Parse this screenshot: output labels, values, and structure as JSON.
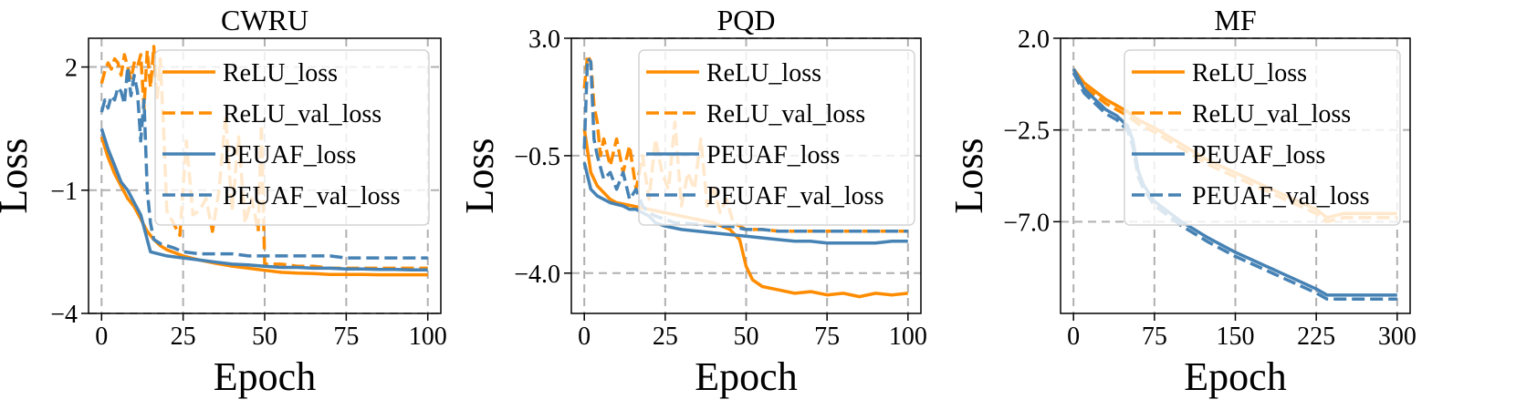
{
  "colors": {
    "relu": "#ff8c00",
    "peuaf": "#4682b4",
    "grid": "#b0b0b0"
  },
  "legend_labels": [
    "ReLU_loss",
    "ReLU_val_loss",
    "PEUAF_loss",
    "PEUAF_val_loss"
  ],
  "chart_data": [
    {
      "type": "line",
      "title": "CWRU",
      "xlabel": "Epoch",
      "ylabel": "Loss",
      "xlim": [
        -4,
        104
      ],
      "ylim": [
        -4,
        2.7
      ],
      "xticks": [
        0,
        25,
        50,
        75,
        100
      ],
      "xtick_labels": [
        "0",
        "25",
        "50",
        "75",
        "100"
      ],
      "yticks": [
        2,
        -1,
        -4
      ],
      "ytick_labels": [
        "2",
        "−1",
        "−4"
      ],
      "grid": true,
      "legend": "upper right",
      "series": [
        {
          "name": "ReLU_loss",
          "color": "#ff8c00",
          "dash": false,
          "x": [
            0,
            2,
            4,
            6,
            8,
            10,
            12,
            14,
            16,
            18,
            20,
            25,
            30,
            35,
            40,
            45,
            50,
            55,
            60,
            65,
            70,
            75,
            80,
            85,
            90,
            95,
            100
          ],
          "y": [
            0.3,
            -0.2,
            -0.6,
            -0.9,
            -1.2,
            -1.4,
            -1.7,
            -2.0,
            -2.2,
            -2.35,
            -2.45,
            -2.6,
            -2.7,
            -2.78,
            -2.85,
            -2.9,
            -2.95,
            -3.0,
            -3.02,
            -3.03,
            -3.05,
            -3.05,
            -3.05,
            -3.06,
            -3.06,
            -3.06,
            -3.06
          ]
        },
        {
          "name": "ReLU_val_loss",
          "color": "#ff8c00",
          "dash": true,
          "x": [
            0,
            1,
            2,
            3,
            4,
            5,
            6,
            7,
            8,
            9,
            10,
            11,
            12,
            13,
            14,
            15,
            16,
            17,
            18,
            19,
            20,
            22,
            24,
            26,
            28,
            30,
            32,
            34,
            36,
            38,
            40,
            42,
            44,
            46,
            48,
            49,
            50,
            55,
            60,
            65,
            70,
            75,
            80,
            85,
            90,
            95,
            100
          ],
          "y": [
            1.6,
            1.9,
            2.1,
            1.95,
            2.2,
            2.1,
            1.8,
            2.3,
            2.0,
            1.7,
            2.1,
            2.0,
            2.3,
            1.0,
            2.4,
            1.5,
            2.5,
            1.2,
            2.2,
            0.5,
            -1.5,
            -1.8,
            -2.1,
            0.2,
            -1.6,
            -1.5,
            -1.2,
            -2.0,
            -1.0,
            0.8,
            -1.5,
            0.3,
            -1.8,
            -1.2,
            -2.0,
            0.6,
            -2.8,
            -2.8,
            -2.85,
            -2.85,
            -2.9,
            -2.9,
            -2.9,
            -2.9,
            -2.9,
            -2.9,
            -2.9
          ]
        },
        {
          "name": "PEUAF_loss",
          "color": "#4682b4",
          "dash": false,
          "x": [
            0,
            2,
            4,
            6,
            8,
            10,
            12,
            14,
            15,
            20,
            25,
            30,
            35,
            40,
            45,
            50,
            55,
            60,
            65,
            70,
            75,
            80,
            85,
            90,
            95,
            100
          ],
          "y": [
            0.5,
            0.0,
            -0.4,
            -0.8,
            -1.0,
            -1.3,
            -1.6,
            -2.2,
            -2.5,
            -2.6,
            -2.65,
            -2.7,
            -2.75,
            -2.8,
            -2.82,
            -2.85,
            -2.88,
            -2.88,
            -2.9,
            -2.9,
            -2.92,
            -2.92,
            -2.93,
            -2.93,
            -2.94,
            -2.94
          ]
        },
        {
          "name": "PEUAF_val_loss",
          "color": "#4682b4",
          "dash": true,
          "x": [
            0,
            1,
            2,
            3,
            4,
            5,
            6,
            7,
            8,
            9,
            10,
            11,
            12,
            13,
            14,
            15,
            16,
            18,
            20,
            22,
            25,
            30,
            35,
            40,
            45,
            50,
            55,
            60,
            65,
            70,
            75,
            80,
            85,
            90,
            95,
            100
          ],
          "y": [
            0.9,
            1.2,
            1.0,
            1.3,
            1.2,
            1.5,
            1.4,
            1.1,
            2.0,
            1.3,
            1.8,
            1.4,
            0.2,
            1.2,
            -1.0,
            -1.8,
            -2.2,
            -2.3,
            -2.35,
            -2.4,
            -2.5,
            -2.55,
            -2.55,
            -2.55,
            -2.6,
            -2.6,
            -2.6,
            -2.6,
            -2.6,
            -2.6,
            -2.65,
            -2.65,
            -2.65,
            -2.65,
            -2.65,
            -2.65
          ]
        }
      ]
    },
    {
      "type": "line",
      "title": "PQD",
      "xlabel": "Epoch",
      "ylabel": "Loss",
      "xlim": [
        -4,
        104
      ],
      "ylim": [
        -5.2,
        3.0
      ],
      "xticks": [
        0,
        25,
        50,
        75,
        100
      ],
      "xtick_labels": [
        "0",
        "25",
        "50",
        "75",
        "100"
      ],
      "yticks": [
        3.0,
        -0.5,
        -4.0
      ],
      "ytick_labels": [
        "3.0",
        "−0.5",
        "−4.0"
      ],
      "grid": true,
      "legend": "upper right",
      "series": [
        {
          "name": "ReLU_loss",
          "color": "#ff8c00",
          "dash": false,
          "x": [
            0,
            2,
            4,
            6,
            8,
            10,
            15,
            20,
            25,
            30,
            35,
            40,
            45,
            48,
            50,
            52,
            55,
            60,
            65,
            70,
            75,
            80,
            85,
            90,
            95,
            100
          ],
          "y": [
            0.3,
            -1.0,
            -1.4,
            -1.6,
            -1.8,
            -1.9,
            -2.0,
            -2.1,
            -2.2,
            -2.3,
            -2.4,
            -2.5,
            -2.7,
            -3.0,
            -3.8,
            -4.2,
            -4.4,
            -4.5,
            -4.6,
            -4.55,
            -4.65,
            -4.6,
            -4.7,
            -4.6,
            -4.65,
            -4.6
          ]
        },
        {
          "name": "ReLU_val_loss",
          "color": "#ff8c00",
          "dash": true,
          "x": [
            0,
            1,
            2,
            3,
            4,
            5,
            6,
            8,
            10,
            12,
            14,
            16,
            18,
            20,
            22,
            24,
            26,
            28,
            30,
            32,
            34,
            36,
            38,
            40,
            42,
            44,
            46,
            48,
            50,
            55,
            60,
            65,
            70,
            75,
            80,
            85,
            90,
            95,
            100
          ],
          "y": [
            1.5,
            2.5,
            2.3,
            1.0,
            0.5,
            -0.5,
            0.0,
            -0.8,
            0.0,
            -1.0,
            -0.2,
            -1.5,
            -0.5,
            -1.8,
            0.0,
            -1.0,
            -1.5,
            0.5,
            -2.0,
            -1.0,
            -1.5,
            0.0,
            -2.0,
            -1.5,
            -2.2,
            -1.8,
            -2.5,
            -2.6,
            -2.7,
            -2.7,
            -2.75,
            -2.75,
            -2.75,
            -2.75,
            -2.75,
            -2.75,
            -2.75,
            -2.75,
            -2.75
          ]
        },
        {
          "name": "PEUAF_loss",
          "color": "#4682b4",
          "dash": false,
          "x": [
            0,
            2,
            4,
            6,
            8,
            10,
            12,
            14,
            16,
            18,
            20,
            22,
            25,
            30,
            35,
            40,
            45,
            50,
            55,
            60,
            65,
            70,
            75,
            80,
            85,
            90,
            95,
            100
          ],
          "y": [
            -0.7,
            -1.5,
            -1.7,
            -1.8,
            -1.9,
            -1.95,
            -2.0,
            -2.1,
            -2.1,
            -2.2,
            -2.3,
            -2.5,
            -2.6,
            -2.7,
            -2.75,
            -2.8,
            -2.85,
            -2.9,
            -2.95,
            -3.0,
            -3.05,
            -3.05,
            -3.1,
            -3.1,
            -3.1,
            -3.1,
            -3.05,
            -3.05
          ]
        },
        {
          "name": "PEUAF_val_loss",
          "color": "#4682b4",
          "dash": true,
          "x": [
            0,
            1,
            2,
            3,
            4,
            6,
            8,
            10,
            12,
            14,
            16,
            18,
            20,
            22,
            25,
            28,
            30,
            35,
            40,
            45,
            50,
            55,
            60,
            65,
            70,
            75,
            80,
            85,
            90,
            95,
            100
          ],
          "y": [
            -0.3,
            2.4,
            2.3,
            0.0,
            -0.5,
            -1.2,
            -1.0,
            -1.5,
            -1.0,
            -1.8,
            -1.5,
            -2.0,
            -2.2,
            -2.3,
            -2.4,
            -2.5,
            -2.5,
            -2.55,
            -2.6,
            -2.6,
            -2.7,
            -2.7,
            -2.75,
            -2.75,
            -2.75,
            -2.75,
            -2.75,
            -2.75,
            -2.75,
            -2.75,
            -2.75
          ]
        }
      ]
    },
    {
      "type": "line",
      "title": "MF",
      "xlabel": "Epoch",
      "ylabel": "Loss",
      "xlim": [
        -12,
        312
      ],
      "ylim": [
        -11.5,
        2.0
      ],
      "xticks": [
        0,
        75,
        150,
        225,
        300
      ],
      "xtick_labels": [
        "0",
        "75",
        "150",
        "225",
        "300"
      ],
      "yticks": [
        2.0,
        -2.5,
        -7.0
      ],
      "ytick_labels": [
        "2.0",
        "−2.5",
        "−7.0"
      ],
      "grid": true,
      "legend": "upper right",
      "series": [
        {
          "name": "ReLU_loss",
          "color": "#ff8c00",
          "dash": false,
          "x": [
            0,
            10,
            20,
            30,
            40,
            50,
            60,
            75,
            100,
            125,
            150,
            175,
            200,
            225,
            235,
            250,
            275,
            300
          ],
          "y": [
            0.5,
            -0.2,
            -0.6,
            -1.0,
            -1.3,
            -1.6,
            -2.0,
            -2.4,
            -3.2,
            -4.0,
            -4.6,
            -5.2,
            -5.8,
            -6.4,
            -6.8,
            -6.6,
            -6.6,
            -6.6
          ]
        },
        {
          "name": "ReLU_val_loss",
          "color": "#ff8c00",
          "dash": true,
          "x": [
            0,
            10,
            20,
            30,
            40,
            50,
            60,
            75,
            100,
            125,
            150,
            175,
            200,
            225,
            235,
            250,
            275,
            300
          ],
          "y": [
            0.3,
            -0.4,
            -0.8,
            -1.2,
            -1.5,
            -1.8,
            -2.2,
            -2.6,
            -3.4,
            -4.2,
            -4.8,
            -5.4,
            -6.0,
            -6.6,
            -7.0,
            -6.8,
            -6.8,
            -6.8
          ]
        },
        {
          "name": "PEUAF_loss",
          "color": "#4682b4",
          "dash": false,
          "x": [
            0,
            10,
            20,
            30,
            40,
            50,
            55,
            60,
            65,
            70,
            75,
            100,
            125,
            150,
            175,
            200,
            225,
            235,
            250,
            275,
            300
          ],
          "y": [
            0.5,
            -0.5,
            -1.0,
            -1.5,
            -1.8,
            -2.3,
            -3.0,
            -4.5,
            -5.2,
            -5.6,
            -6.0,
            -7.0,
            -7.8,
            -8.5,
            -9.1,
            -9.7,
            -10.3,
            -10.6,
            -10.6,
            -10.6,
            -10.6
          ]
        },
        {
          "name": "PEUAF_val_loss",
          "color": "#4682b4",
          "dash": true,
          "x": [
            0,
            10,
            20,
            30,
            40,
            50,
            55,
            60,
            65,
            70,
            75,
            100,
            125,
            150,
            175,
            200,
            225,
            235,
            250,
            275,
            300
          ],
          "y": [
            0.3,
            -0.7,
            -1.2,
            -1.7,
            -2.0,
            -2.5,
            -3.3,
            -4.8,
            -5.4,
            -5.8,
            -6.2,
            -7.2,
            -8.0,
            -8.7,
            -9.3,
            -9.9,
            -10.5,
            -10.8,
            -10.8,
            -10.8,
            -10.8
          ]
        }
      ]
    }
  ]
}
